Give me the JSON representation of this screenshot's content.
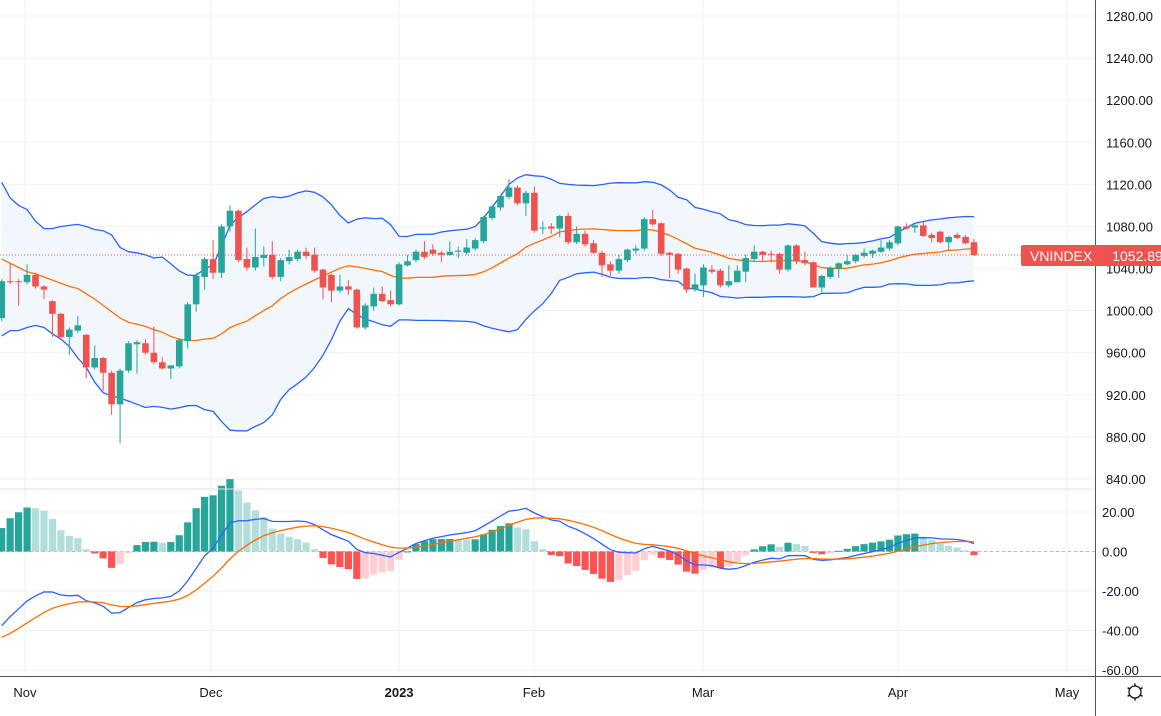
{
  "chart_data": {
    "type": "candlestick",
    "symbol": "VNINDEX",
    "last_price": "1052.89",
    "price_axis": {
      "ticks": [
        "1280.00",
        "1240.00",
        "1200.00",
        "1160.00",
        "1120.00",
        "1080.00",
        "1040.00",
        "1000.00",
        "960.00",
        "920.00",
        "880.00",
        "840.00"
      ],
      "ylim": [
        840,
        1280
      ]
    },
    "macd_axis": {
      "ticks": [
        "20.00",
        "0.00",
        "-20.00",
        "-40.00",
        "-60.00"
      ],
      "ylim": [
        -60,
        20
      ]
    },
    "time_axis": {
      "ticks": [
        {
          "label": "Nov",
          "bold": false
        },
        {
          "label": "Dec",
          "bold": false
        },
        {
          "label": "2023",
          "bold": true
        },
        {
          "label": "Feb",
          "bold": false
        },
        {
          "label": "Mar",
          "bold": false
        },
        {
          "label": "Apr",
          "bold": false
        },
        {
          "label": "May",
          "bold": false
        }
      ]
    },
    "grid": true,
    "indicators": [
      "Bollinger Bands",
      "MACD"
    ],
    "colors": {
      "up": "#26a69a",
      "down": "#ef5350",
      "bands": "#2962ff",
      "basis": "#ff6d00",
      "band_fill": "#f1f7fd",
      "macd": "#2962ff",
      "signal": "#ff6d00",
      "hist_up_strong": "#26a69a",
      "hist_up_weak": "#b2dfdb",
      "hist_down_strong": "#ff5252",
      "hist_down_weak": "#ffcdd2",
      "grid": "#eef1f6"
    },
    "candle_fields": [
      "date",
      "open",
      "high",
      "low",
      "close"
    ],
    "candles": [
      [
        "2022-10-27",
        993,
        1030,
        990,
        1028
      ],
      [
        "2022-10-28",
        1028,
        1045,
        1025,
        1027
      ],
      [
        "2022-10-31",
        1028,
        1030,
        1005,
        1027
      ],
      [
        "2022-11-01",
        1027,
        1044,
        1025,
        1034
      ],
      [
        "2022-11-02",
        1034,
        1036,
        1021,
        1023
      ],
      [
        "2022-11-03",
        1023,
        1024,
        1011,
        1020
      ],
      [
        "2022-11-04",
        1009,
        1010,
        975,
        997
      ],
      [
        "2022-11-07",
        997,
        998,
        972,
        975
      ],
      [
        "2022-11-08",
        975,
        984,
        958,
        982
      ],
      [
        "2022-11-09",
        981,
        995,
        979,
        986
      ],
      [
        "2022-11-10",
        977,
        978,
        936,
        946
      ],
      [
        "2022-11-11",
        946,
        967,
        944,
        955
      ],
      [
        "2022-11-14",
        955,
        956,
        924,
        941
      ],
      [
        "2022-11-15",
        941,
        943,
        901,
        911
      ],
      [
        "2022-11-16",
        911,
        945,
        874,
        943
      ],
      [
        "2022-11-17",
        943,
        971,
        941,
        969
      ],
      [
        "2022-11-18",
        968,
        972,
        940,
        970
      ],
      [
        "2022-11-21",
        969,
        973,
        958,
        960
      ],
      [
        "2022-11-22",
        960,
        985,
        949,
        951
      ],
      [
        "2022-11-23",
        951,
        956,
        944,
        945
      ],
      [
        "2022-11-24",
        945,
        948,
        935,
        948
      ],
      [
        "2022-11-25",
        947,
        974,
        945,
        972
      ],
      [
        "2022-11-28",
        971,
        1008,
        964,
        1006
      ],
      [
        "2022-11-29",
        1006,
        1036,
        999,
        1033
      ],
      [
        "2022-11-30",
        1032,
        1051,
        1020,
        1049
      ],
      [
        "2022-12-01",
        1049,
        1067,
        1030,
        1036
      ],
      [
        "2022-12-02",
        1036,
        1082,
        1031,
        1080
      ],
      [
        "2022-12-05",
        1080,
        1100,
        1075,
        1095
      ],
      [
        "2022-12-06",
        1095,
        1096,
        1046,
        1048
      ],
      [
        "2022-12-07",
        1049,
        1060,
        1038,
        1041
      ],
      [
        "2022-12-08",
        1041,
        1078,
        1038,
        1051
      ],
      [
        "2022-12-09",
        1050,
        1061,
        1042,
        1053
      ],
      [
        "2022-12-12",
        1053,
        1066,
        1030,
        1032
      ],
      [
        "2022-12-13",
        1032,
        1050,
        1028,
        1048
      ],
      [
        "2022-12-14",
        1047,
        1058,
        1044,
        1051
      ],
      [
        "2022-12-15",
        1049,
        1058,
        1047,
        1056
      ],
      [
        "2022-12-16",
        1056,
        1060,
        1049,
        1052
      ],
      [
        "2022-12-19",
        1053,
        1060,
        1036,
        1038
      ],
      [
        "2022-12-20",
        1039,
        1040,
        1011,
        1022
      ],
      [
        "2022-12-21",
        1034,
        1035,
        1008,
        1019
      ],
      [
        "2022-12-22",
        1019,
        1034,
        1017,
        1023
      ],
      [
        "2022-12-23",
        1023,
        1029,
        1015,
        1020
      ],
      [
        "2022-12-26",
        1020,
        1021,
        983,
        984
      ],
      [
        "2022-12-27",
        984,
        1007,
        982,
        1005
      ],
      [
        "2022-12-28",
        1004,
        1022,
        1000,
        1016
      ],
      [
        "2022-12-29",
        1016,
        1023,
        1008,
        1009
      ],
      [
        "2022-12-30",
        1010,
        1019,
        1004,
        1006
      ],
      [
        "2023-01-03",
        1006,
        1046,
        1005,
        1044
      ],
      [
        "2023-01-04",
        1043,
        1053,
        1042,
        1047
      ],
      [
        "2023-01-05",
        1048,
        1058,
        1046,
        1056
      ],
      [
        "2023-01-06",
        1056,
        1066,
        1049,
        1051
      ],
      [
        "2023-01-09",
        1058,
        1063,
        1052,
        1054
      ],
      [
        "2023-01-10",
        1055,
        1057,
        1046,
        1053
      ],
      [
        "2023-01-11",
        1053,
        1066,
        1052,
        1056
      ],
      [
        "2023-01-12",
        1056,
        1061,
        1050,
        1057
      ],
      [
        "2023-01-13",
        1055,
        1068,
        1053,
        1060
      ],
      [
        "2023-01-16",
        1059,
        1069,
        1057,
        1067
      ],
      [
        "2023-01-17",
        1066,
        1090,
        1064,
        1089
      ],
      [
        "2023-01-18",
        1088,
        1100,
        1086,
        1099
      ],
      [
        "2023-01-19",
        1098,
        1110,
        1095,
        1109
      ],
      [
        "2023-01-27",
        1108,
        1125,
        1106,
        1117
      ],
      [
        "2023-01-30",
        1117,
        1119,
        1100,
        1102
      ],
      [
        "2023-01-31",
        1102,
        1114,
        1090,
        1112
      ],
      [
        "2023-02-01",
        1112,
        1118,
        1074,
        1076
      ],
      [
        "2023-02-02",
        1078,
        1085,
        1073,
        1079
      ],
      [
        "2023-02-03",
        1080,
        1083,
        1073,
        1078
      ],
      [
        "2023-02-06",
        1078,
        1091,
        1070,
        1090
      ],
      [
        "2023-02-07",
        1090,
        1093,
        1063,
        1065
      ],
      [
        "2023-02-08",
        1065,
        1080,
        1063,
        1073
      ],
      [
        "2023-02-09",
        1073,
        1076,
        1061,
        1063
      ],
      [
        "2023-02-10",
        1064,
        1067,
        1054,
        1055
      ],
      [
        "2023-02-13",
        1055,
        1057,
        1032,
        1043
      ],
      [
        "2023-02-14",
        1044,
        1047,
        1033,
        1038
      ],
      [
        "2023-02-15",
        1038,
        1053,
        1035,
        1049
      ],
      [
        "2023-02-16",
        1048,
        1059,
        1046,
        1058
      ],
      [
        "2023-02-17",
        1057,
        1062,
        1054,
        1059
      ],
      [
        "2023-02-20",
        1059,
        1089,
        1057,
        1087
      ],
      [
        "2023-02-21",
        1087,
        1096,
        1080,
        1082
      ],
      [
        "2023-02-22",
        1083,
        1084,
        1052,
        1054
      ],
      [
        "2023-02-23",
        1055,
        1056,
        1031,
        1053
      ],
      [
        "2023-02-24",
        1054,
        1055,
        1035,
        1039
      ],
      [
        "2023-02-27",
        1040,
        1041,
        1017,
        1020
      ],
      [
        "2023-02-28",
        1020,
        1035,
        1018,
        1025
      ],
      [
        "2023-03-01",
        1024,
        1044,
        1013,
        1041
      ],
      [
        "2023-03-02",
        1039,
        1043,
        1035,
        1037
      ],
      [
        "2023-03-03",
        1038,
        1040,
        1022,
        1024
      ],
      [
        "2023-03-06",
        1024,
        1043,
        1022,
        1028
      ],
      [
        "2023-03-07",
        1027,
        1043,
        1027,
        1038
      ],
      [
        "2023-03-08",
        1037,
        1053,
        1027,
        1050
      ],
      [
        "2023-03-09",
        1049,
        1062,
        1047,
        1056
      ],
      [
        "2023-03-10",
        1056,
        1057,
        1047,
        1053
      ],
      [
        "2023-03-13",
        1054,
        1057,
        1046,
        1053
      ],
      [
        "2023-03-14",
        1054,
        1055,
        1035,
        1039
      ],
      [
        "2023-03-15",
        1039,
        1063,
        1037,
        1062
      ],
      [
        "2023-03-16",
        1062,
        1063,
        1044,
        1047
      ],
      [
        "2023-03-17",
        1048,
        1056,
        1043,
        1045
      ],
      [
        "2023-03-20",
        1046,
        1047,
        1022,
        1022
      ],
      [
        "2023-03-21",
        1022,
        1034,
        1017,
        1033
      ],
      [
        "2023-03-22",
        1032,
        1042,
        1030,
        1041
      ],
      [
        "2023-03-23",
        1040,
        1046,
        1031,
        1045
      ],
      [
        "2023-03-24",
        1044,
        1053,
        1043,
        1047
      ],
      [
        "2023-03-27",
        1047,
        1054,
        1045,
        1053
      ],
      [
        "2023-03-28",
        1052,
        1059,
        1050,
        1055
      ],
      [
        "2023-03-29",
        1054,
        1058,
        1050,
        1057
      ],
      [
        "2023-03-30",
        1056,
        1067,
        1055,
        1060
      ],
      [
        "2023-03-31",
        1059,
        1067,
        1057,
        1065
      ],
      [
        "2023-04-03",
        1064,
        1081,
        1062,
        1080
      ],
      [
        "2023-04-04",
        1080,
        1083,
        1077,
        1078
      ],
      [
        "2023-04-05",
        1079,
        1082,
        1074,
        1081
      ],
      [
        "2023-04-06",
        1081,
        1085,
        1070,
        1071
      ],
      [
        "2023-04-07",
        1072,
        1074,
        1065,
        1069
      ],
      [
        "2023-04-10",
        1075,
        1076,
        1064,
        1065
      ],
      [
        "2023-04-11",
        1065,
        1071,
        1057,
        1070
      ],
      [
        "2023-04-12",
        1072,
        1074,
        1068,
        1069
      ],
      [
        "2023-04-13",
        1070,
        1072,
        1063,
        1064
      ],
      [
        "2023-04-14",
        1065,
        1068,
        1052,
        1052.89
      ]
    ]
  },
  "settings": {
    "icon": "gear-icon"
  }
}
